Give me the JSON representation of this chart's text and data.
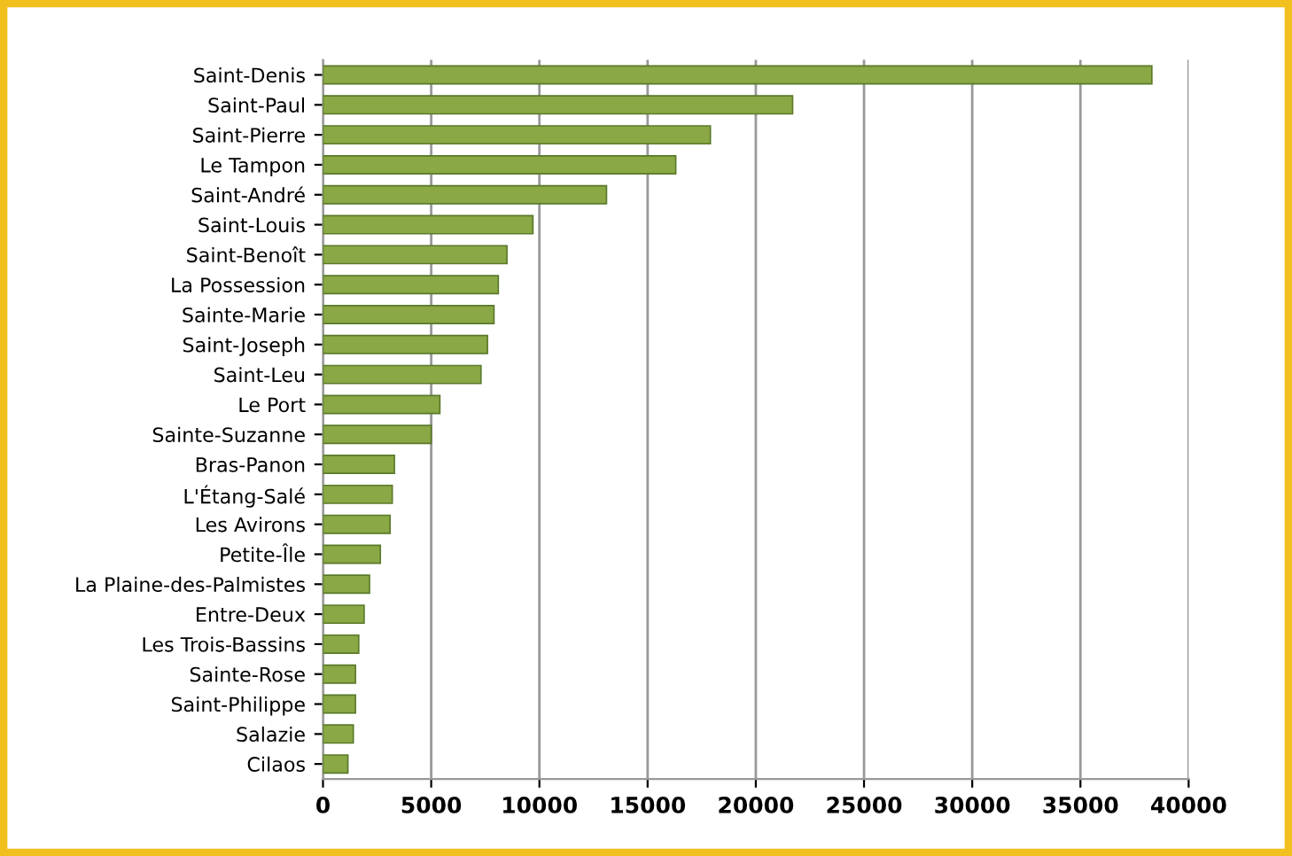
{
  "chart_data": {
    "type": "bar",
    "orientation": "horizontal",
    "categories": [
      "Saint-Denis",
      "Saint-Paul",
      "Saint-Pierre",
      "Le Tampon",
      "Saint-André",
      "Saint-Louis",
      "Saint-Benoît",
      "La Possession",
      "Sainte-Marie",
      "Saint-Joseph",
      "Saint-Leu",
      "Le Port",
      "Sainte-Suzanne",
      "Bras-Panon",
      "L'Étang-Salé",
      "Les Avirons",
      "Petite-Île",
      "La Plaine-des-Palmistes",
      "Entre-Deux",
      "Les Trois-Bassins",
      "Sainte-Rose",
      "Saint-Philippe",
      "Salazie",
      "Cilaos"
    ],
    "values": [
      38300,
      21700,
      17900,
      16300,
      13100,
      9700,
      8500,
      8100,
      7900,
      7600,
      7300,
      5400,
      5000,
      3300,
      3200,
      3100,
      2650,
      2150,
      1900,
      1650,
      1500,
      1500,
      1400,
      1150
    ],
    "color": "#8aa845",
    "xlim": [
      0,
      40000
    ],
    "xticks": [
      0,
      5000,
      10000,
      15000,
      20000,
      25000,
      30000,
      35000,
      40000
    ],
    "grid": "x"
  }
}
